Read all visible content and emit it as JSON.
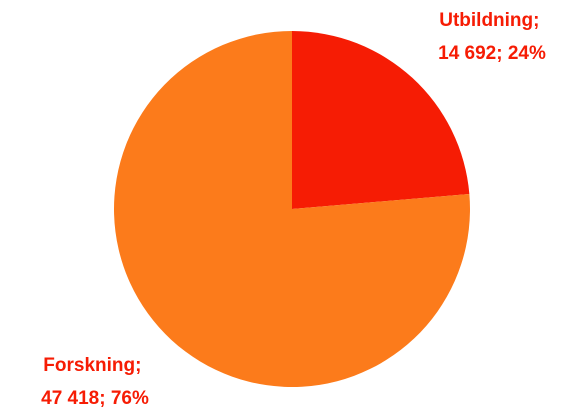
{
  "chart_data": {
    "type": "pie",
    "title": "",
    "slices": [
      {
        "label": "Utbildning",
        "value": 14692,
        "percent": "24%",
        "value_text": "14 692",
        "color": "#f61c04",
        "label_color": "#f61c04"
      },
      {
        "label": "Forskning",
        "value": 47418,
        "percent": "76%",
        "value_text": "47 418",
        "color": "#fc7b1b",
        "label_color": "#f61c04"
      }
    ],
    "legend": "none"
  }
}
